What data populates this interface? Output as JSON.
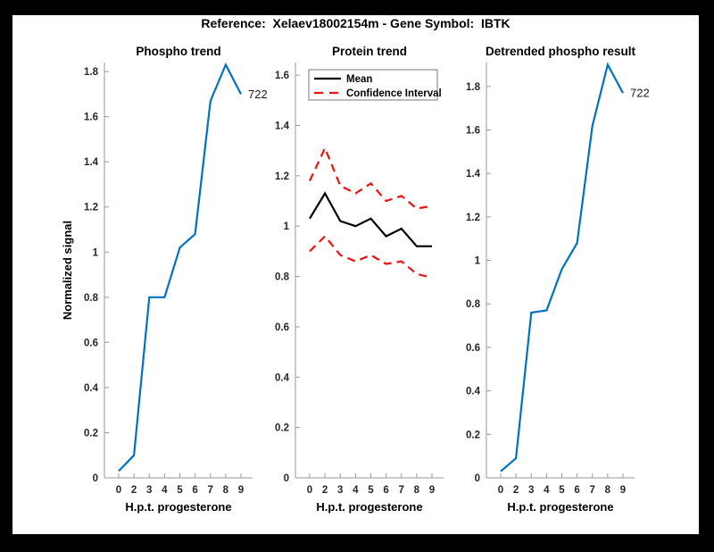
{
  "figure": {
    "title": "Reference:  Xelaev18002154m - Gene Symbol:  IBTK",
    "background_color": "#000000",
    "canvas_color": "#ffffff"
  },
  "colors": {
    "phospho_line": "#0072BD",
    "mean_line": "#000000",
    "confidence_interval": "#ee1111",
    "axis": "#9a9a9a",
    "tick_label": "#262626"
  },
  "chart_data": [
    {
      "id": "phospho-trend",
      "type": "line",
      "title": "Phospho trend",
      "xlabel": "H.p.t. progesterone",
      "ylabel": "Normalized signal",
      "x_tick_labels": [
        "0",
        "2",
        "3",
        "4",
        "5",
        "6",
        "7",
        "8",
        "9"
      ],
      "y_tick_values": [
        0,
        0.2,
        0.4,
        0.6,
        0.8,
        1,
        1.2,
        1.4,
        1.6,
        1.8
      ],
      "y_tick_labels": [
        "0",
        "0.2",
        "0.4",
        "0.6",
        "0.8",
        "1",
        "1.2",
        "1.4",
        "1.6",
        "1.8"
      ],
      "ylim": [
        0,
        1.84
      ],
      "grid": false,
      "legend": null,
      "end_label": "722",
      "series": [
        {
          "name": "phospho signal",
          "color": "#0072BD",
          "dash": false,
          "values": [
            0.03,
            0.1,
            0.8,
            0.8,
            1.02,
            1.08,
            1.67,
            1.83,
            1.7
          ]
        }
      ]
    },
    {
      "id": "protein-trend",
      "type": "line",
      "title": "Protein trend",
      "xlabel": "H.p.t. progesterone",
      "ylabel": null,
      "x_tick_labels": [
        "0",
        "2",
        "3",
        "4",
        "5",
        "6",
        "7",
        "8",
        "9"
      ],
      "y_tick_values": [
        0,
        0.2,
        0.4,
        0.6,
        0.8,
        1,
        1.2,
        1.4,
        1.6
      ],
      "y_tick_labels": [
        "0",
        "0.2",
        "0.4",
        "0.6",
        "0.8",
        "1",
        "1.2",
        "1.4",
        "1.6"
      ],
      "ylim": [
        0,
        1.65
      ],
      "grid": false,
      "legend": {
        "position": "northwest",
        "entries": [
          {
            "label": "Mean",
            "color": "#000000",
            "dash": false
          },
          {
            "label": "Confidence Interval",
            "color": "#ee1111",
            "dash": true
          }
        ]
      },
      "end_label": null,
      "series": [
        {
          "name": "Mean",
          "color": "#000000",
          "dash": false,
          "values": [
            1.03,
            1.13,
            1.02,
            1.0,
            1.03,
            0.96,
            0.99,
            0.92,
            0.92
          ]
        },
        {
          "name": "Confidence Interval upper",
          "color": "#ee1111",
          "dash": true,
          "values": [
            1.18,
            1.31,
            1.16,
            1.13,
            1.17,
            1.1,
            1.12,
            1.07,
            1.08
          ]
        },
        {
          "name": "Confidence Interval lower",
          "color": "#ee1111",
          "dash": true,
          "values": [
            0.9,
            0.96,
            0.885,
            0.86,
            0.885,
            0.85,
            0.86,
            0.81,
            0.795
          ]
        }
      ]
    },
    {
      "id": "detrended-phospho-result",
      "type": "line",
      "title": "Detrended phospho result",
      "xlabel": "H.p.t. progesterone",
      "ylabel": null,
      "x_tick_labels": [
        "0",
        "2",
        "3",
        "4",
        "5",
        "6",
        "7",
        "8",
        "9"
      ],
      "y_tick_values": [
        0,
        0.2,
        0.4,
        0.6,
        0.8,
        1,
        1.2,
        1.4,
        1.6,
        1.8
      ],
      "y_tick_labels": [
        "0",
        "0.2",
        "0.4",
        "0.6",
        "0.8",
        "1",
        "1.2",
        "1.4",
        "1.6",
        "1.8"
      ],
      "ylim": [
        0,
        1.91
      ],
      "grid": false,
      "legend": null,
      "end_label": "722",
      "series": [
        {
          "name": "detrended phospho signal",
          "color": "#0072BD",
          "dash": false,
          "values": [
            0.03,
            0.09,
            0.76,
            0.77,
            0.96,
            1.08,
            1.62,
            1.9,
            1.77
          ]
        }
      ]
    }
  ]
}
